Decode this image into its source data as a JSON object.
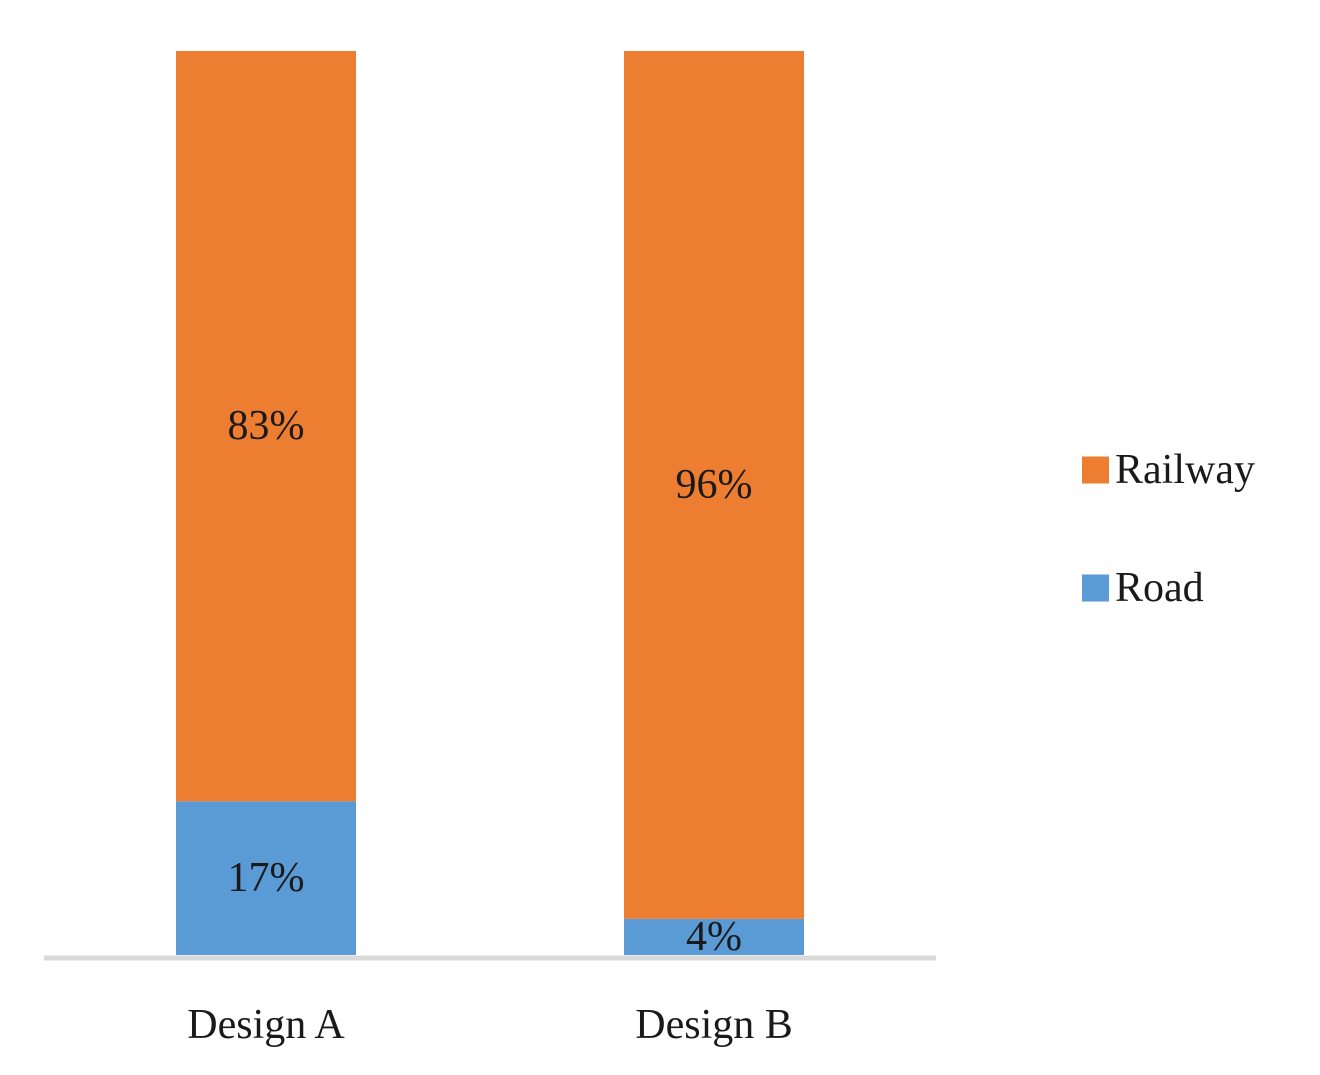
{
  "chart_data": {
    "type": "bar",
    "stacked": true,
    "normalized_percent": true,
    "categories": [
      "Design A",
      "Design B"
    ],
    "series": [
      {
        "name": "Road",
        "color": "#5b9bd5",
        "values": [
          17,
          4
        ],
        "labels": [
          "17%",
          "4%"
        ]
      },
      {
        "name": "Railway",
        "color": "#ed7d31",
        "values": [
          83,
          96
        ],
        "labels": [
          "83%",
          "96%"
        ]
      }
    ],
    "legend": {
      "placement": "right",
      "order": [
        "Railway",
        "Road"
      ]
    },
    "title": "",
    "xlabel": "",
    "ylabel": "",
    "ylim": [
      0,
      100
    ],
    "grid": false,
    "y_axis_visible": false,
    "axis_color": "#d9d9d9"
  }
}
